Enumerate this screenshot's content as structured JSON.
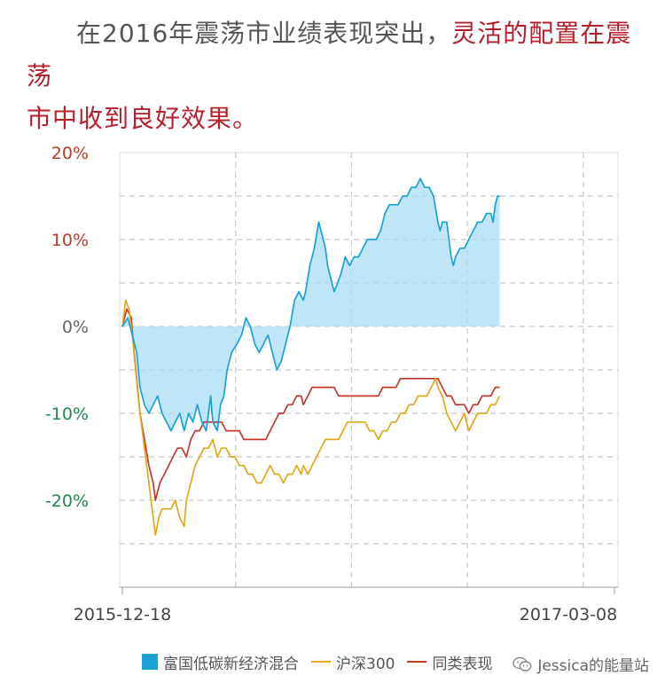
{
  "heading": {
    "lead_text": "在2016年震荡市业绩表现突出，",
    "highlight_line1": "灵活的配置在震荡",
    "highlight_line2": "市中收到良好效果。"
  },
  "chart_data": {
    "type": "line",
    "x_range": [
      "2015-12-18",
      "2017-03-08"
    ],
    "x_tick_labels": [
      "2015-12-18",
      "2017-03-08"
    ],
    "ylim": [
      -30,
      20
    ],
    "y_ticks": [
      {
        "value": 20,
        "label": "20%",
        "color": "#c0392b"
      },
      {
        "value": 10,
        "label": "10%",
        "color": "#c0392b"
      },
      {
        "value": 0,
        "label": "0%",
        "color": "#666666"
      },
      {
        "value": -10,
        "label": "-10%",
        "color": "#1e8a4c"
      },
      {
        "value": -20,
        "label": "-20%",
        "color": "#1e8a4c"
      }
    ],
    "grid": true,
    "legend_position": "bottom",
    "series": [
      {
        "name": "富国低碳新经济混合",
        "color": "#1aa1d6",
        "fill": "#a8dcf6",
        "style": "area",
        "points": [
          [
            0,
            0
          ],
          [
            5,
            1
          ],
          [
            9,
            -1
          ],
          [
            13,
            -3
          ],
          [
            16,
            -7
          ],
          [
            20,
            -9
          ],
          [
            24,
            -10
          ],
          [
            28,
            -9
          ],
          [
            32,
            -8
          ],
          [
            36,
            -10
          ],
          [
            40,
            -11
          ],
          [
            44,
            -12
          ],
          [
            48,
            -11
          ],
          [
            52,
            -10
          ],
          [
            56,
            -12
          ],
          [
            60,
            -10
          ],
          [
            64,
            -11
          ],
          [
            68,
            -9
          ],
          [
            72,
            -11
          ],
          [
            76,
            -12
          ],
          [
            80,
            -8
          ],
          [
            82,
            -11
          ],
          [
            86,
            -12
          ],
          [
            89,
            -9
          ],
          [
            92,
            -8
          ],
          [
            95,
            -5
          ],
          [
            99,
            -3
          ],
          [
            104,
            -2
          ],
          [
            108,
            -1
          ],
          [
            112,
            1
          ],
          [
            116,
            0
          ],
          [
            120,
            -2
          ],
          [
            124,
            -3
          ],
          [
            128,
            -2
          ],
          [
            132,
            -1
          ],
          [
            136,
            -3
          ],
          [
            140,
            -5
          ],
          [
            144,
            -4
          ],
          [
            148,
            -2
          ],
          [
            152,
            0
          ],
          [
            156,
            3
          ],
          [
            160,
            4
          ],
          [
            164,
            3
          ],
          [
            166,
            4
          ],
          [
            170,
            7
          ],
          [
            174,
            9
          ],
          [
            178,
            12
          ],
          [
            180,
            11
          ],
          [
            182,
            10
          ],
          [
            184,
            9
          ],
          [
            186,
            7
          ],
          [
            188,
            6
          ],
          [
            190,
            5
          ],
          [
            192,
            4
          ],
          [
            195,
            5
          ],
          [
            198,
            6
          ],
          [
            202,
            8
          ],
          [
            206,
            7
          ],
          [
            210,
            8
          ],
          [
            214,
            8
          ],
          [
            218,
            9
          ],
          [
            222,
            10
          ],
          [
            226,
            10
          ],
          [
            230,
            10
          ],
          [
            234,
            11
          ],
          [
            238,
            13
          ],
          [
            242,
            14
          ],
          [
            246,
            14
          ],
          [
            250,
            14
          ],
          [
            254,
            15
          ],
          [
            258,
            15
          ],
          [
            262,
            16
          ],
          [
            266,
            16
          ],
          [
            270,
            17
          ],
          [
            274,
            16
          ],
          [
            278,
            16
          ],
          [
            282,
            15
          ],
          [
            286,
            12
          ],
          [
            288,
            11
          ],
          [
            290,
            12
          ],
          [
            294,
            12
          ],
          [
            298,
            8
          ],
          [
            300,
            7
          ],
          [
            302,
            8
          ],
          [
            306,
            9
          ],
          [
            310,
            9
          ],
          [
            314,
            10
          ],
          [
            318,
            11
          ],
          [
            322,
            12
          ],
          [
            326,
            12
          ],
          [
            330,
            13
          ],
          [
            334,
            13
          ],
          [
            336,
            12
          ],
          [
            338,
            14
          ],
          [
            340,
            15
          ],
          [
            342,
            15
          ]
        ]
      },
      {
        "name": "沪深300",
        "color": "#e0a81c",
        "style": "line",
        "points": [
          [
            0,
            0
          ],
          [
            3,
            3
          ],
          [
            6,
            2
          ],
          [
            9,
            -1
          ],
          [
            12,
            -5
          ],
          [
            16,
            -10
          ],
          [
            20,
            -14
          ],
          [
            24,
            -18
          ],
          [
            28,
            -22
          ],
          [
            30,
            -24
          ],
          [
            33,
            -22
          ],
          [
            36,
            -21
          ],
          [
            40,
            -21
          ],
          [
            44,
            -21
          ],
          [
            48,
            -20
          ],
          [
            52,
            -22
          ],
          [
            56,
            -23
          ],
          [
            58,
            -20
          ],
          [
            62,
            -18
          ],
          [
            66,
            -16
          ],
          [
            70,
            -15
          ],
          [
            74,
            -14
          ],
          [
            78,
            -14
          ],
          [
            82,
            -13
          ],
          [
            86,
            -15
          ],
          [
            90,
            -14
          ],
          [
            94,
            -14
          ],
          [
            98,
            -15
          ],
          [
            102,
            -15
          ],
          [
            106,
            -16
          ],
          [
            110,
            -16
          ],
          [
            114,
            -17
          ],
          [
            118,
            -17
          ],
          [
            122,
            -18
          ],
          [
            126,
            -18
          ],
          [
            130,
            -17
          ],
          [
            134,
            -16
          ],
          [
            138,
            -17
          ],
          [
            142,
            -17
          ],
          [
            146,
            -18
          ],
          [
            150,
            -17
          ],
          [
            154,
            -17
          ],
          [
            158,
            -16
          ],
          [
            162,
            -17
          ],
          [
            164,
            -16
          ],
          [
            168,
            -17
          ],
          [
            172,
            -16
          ],
          [
            176,
            -15
          ],
          [
            180,
            -14
          ],
          [
            184,
            -13
          ],
          [
            188,
            -13
          ],
          [
            192,
            -13
          ],
          [
            196,
            -13
          ],
          [
            200,
            -12
          ],
          [
            204,
            -11
          ],
          [
            208,
            -11
          ],
          [
            212,
            -11
          ],
          [
            216,
            -11
          ],
          [
            220,
            -11
          ],
          [
            224,
            -12
          ],
          [
            228,
            -12
          ],
          [
            232,
            -13
          ],
          [
            236,
            -12
          ],
          [
            240,
            -12
          ],
          [
            244,
            -11
          ],
          [
            248,
            -11
          ],
          [
            252,
            -10
          ],
          [
            256,
            -10
          ],
          [
            260,
            -9
          ],
          [
            264,
            -9
          ],
          [
            268,
            -8
          ],
          [
            272,
            -8
          ],
          [
            276,
            -8
          ],
          [
            280,
            -7
          ],
          [
            284,
            -6
          ],
          [
            286,
            -7
          ],
          [
            290,
            -8
          ],
          [
            294,
            -10
          ],
          [
            298,
            -11
          ],
          [
            302,
            -12
          ],
          [
            306,
            -11
          ],
          [
            310,
            -10
          ],
          [
            314,
            -12
          ],
          [
            318,
            -11
          ],
          [
            322,
            -10
          ],
          [
            326,
            -10
          ],
          [
            330,
            -10
          ],
          [
            334,
            -9
          ],
          [
            338,
            -9
          ],
          [
            342,
            -8
          ]
        ]
      },
      {
        "name": "同类表现",
        "color": "#c0392b",
        "style": "line",
        "points": [
          [
            0,
            0
          ],
          [
            4,
            2
          ],
          [
            8,
            1
          ],
          [
            10,
            -2
          ],
          [
            13,
            -6
          ],
          [
            16,
            -10
          ],
          [
            20,
            -13
          ],
          [
            24,
            -16
          ],
          [
            28,
            -18
          ],
          [
            30,
            -20
          ],
          [
            34,
            -18
          ],
          [
            38,
            -17
          ],
          [
            42,
            -16
          ],
          [
            46,
            -15
          ],
          [
            50,
            -14
          ],
          [
            54,
            -14
          ],
          [
            58,
            -15
          ],
          [
            62,
            -13
          ],
          [
            66,
            -12
          ],
          [
            70,
            -12
          ],
          [
            74,
            -11
          ],
          [
            78,
            -11
          ],
          [
            82,
            -11
          ],
          [
            86,
            -11
          ],
          [
            90,
            -11
          ],
          [
            94,
            -12
          ],
          [
            98,
            -12
          ],
          [
            102,
            -12
          ],
          [
            106,
            -12
          ],
          [
            110,
            -13
          ],
          [
            114,
            -13
          ],
          [
            118,
            -13
          ],
          [
            122,
            -13
          ],
          [
            126,
            -13
          ],
          [
            130,
            -13
          ],
          [
            134,
            -12
          ],
          [
            138,
            -11
          ],
          [
            142,
            -10
          ],
          [
            146,
            -10
          ],
          [
            150,
            -9
          ],
          [
            154,
            -9
          ],
          [
            158,
            -8
          ],
          [
            162,
            -8
          ],
          [
            164,
            -9
          ],
          [
            168,
            -8
          ],
          [
            172,
            -7
          ],
          [
            176,
            -7
          ],
          [
            180,
            -7
          ],
          [
            184,
            -7
          ],
          [
            188,
            -7
          ],
          [
            192,
            -7
          ],
          [
            196,
            -8
          ],
          [
            200,
            -8
          ],
          [
            204,
            -8
          ],
          [
            208,
            -8
          ],
          [
            212,
            -8
          ],
          [
            216,
            -8
          ],
          [
            220,
            -8
          ],
          [
            224,
            -8
          ],
          [
            228,
            -8
          ],
          [
            232,
            -8
          ],
          [
            236,
            -7
          ],
          [
            240,
            -7
          ],
          [
            244,
            -7
          ],
          [
            248,
            -7
          ],
          [
            252,
            -6
          ],
          [
            256,
            -6
          ],
          [
            260,
            -6
          ],
          [
            264,
            -6
          ],
          [
            268,
            -6
          ],
          [
            272,
            -6
          ],
          [
            276,
            -6
          ],
          [
            280,
            -6
          ],
          [
            284,
            -6
          ],
          [
            286,
            -6
          ],
          [
            290,
            -7
          ],
          [
            294,
            -8
          ],
          [
            298,
            -8
          ],
          [
            302,
            -9
          ],
          [
            306,
            -9
          ],
          [
            310,
            -9
          ],
          [
            314,
            -10
          ],
          [
            318,
            -9
          ],
          [
            322,
            -9
          ],
          [
            326,
            -8
          ],
          [
            330,
            -8
          ],
          [
            334,
            -8
          ],
          [
            338,
            -7
          ],
          [
            342,
            -7
          ]
        ]
      }
    ]
  },
  "legend": {
    "items": [
      {
        "label": "富国低碳新经济混合",
        "color": "#1aa1d6",
        "kind": "box"
      },
      {
        "label": "沪深300",
        "color": "#e0a81c",
        "kind": "line"
      },
      {
        "label": "同类表现",
        "color": "#c0392b",
        "kind": "line"
      }
    ]
  },
  "watermark": {
    "text": "Jessica的能量站",
    "icon": "wechat-icon"
  }
}
